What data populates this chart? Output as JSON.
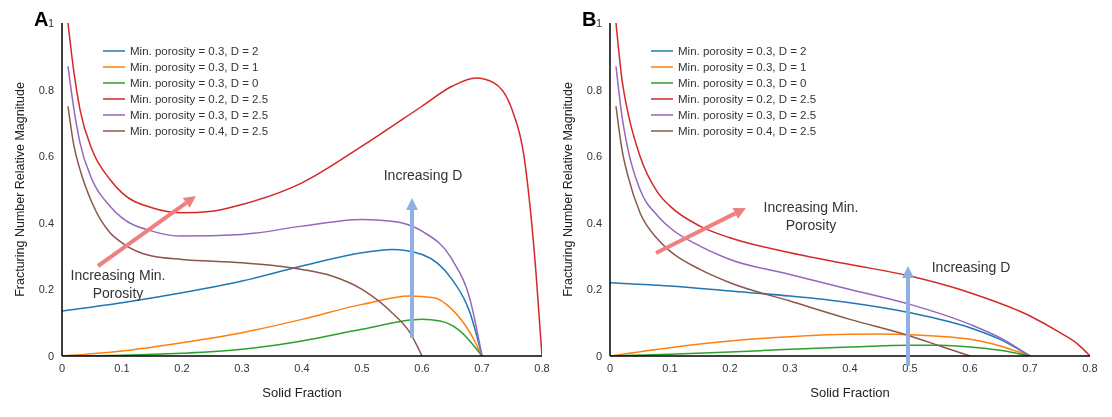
{
  "chart_data": [
    {
      "type": "line",
      "title": "A",
      "xlabel": "Solid Fraction",
      "ylabel": "Fracturing Number Relative Magnitude",
      "xlim": [
        0,
        0.8
      ],
      "xticks": [
        0,
        0.1,
        0.2,
        0.3,
        0.4,
        0.5,
        0.6,
        0.7,
        0.8
      ],
      "ylim": [
        0,
        1
      ],
      "yticks": [
        0,
        0.2,
        0.4,
        0.6,
        0.8,
        1
      ],
      "legend": "top left",
      "marker": "none",
      "annotations": [
        "Increasing D",
        "Increasing Min. Porosity"
      ],
      "series": [
        {
          "name": "Min. porosity = 0.3, D = 2",
          "color": "#1f77b4",
          "x": [
            0,
            0.1,
            0.2,
            0.3,
            0.4,
            0.5,
            0.55,
            0.6,
            0.65,
            0.68,
            0.7
          ],
          "values": [
            0.135,
            0.16,
            0.19,
            0.225,
            0.27,
            0.31,
            0.32,
            0.305,
            0.23,
            0.13,
            0
          ]
        },
        {
          "name": "Min. porosity = 0.3, D = 1",
          "color": "#ff7f0e",
          "x": [
            0,
            0.1,
            0.2,
            0.3,
            0.4,
            0.5,
            0.58,
            0.62,
            0.65,
            0.68,
            0.7
          ],
          "values": [
            0,
            0.015,
            0.04,
            0.07,
            0.11,
            0.155,
            0.18,
            0.175,
            0.14,
            0.07,
            0
          ]
        },
        {
          "name": "Min. porosity = 0.3, D = 0",
          "color": "#2ca02c",
          "x": [
            0,
            0.1,
            0.2,
            0.3,
            0.4,
            0.5,
            0.6,
            0.63,
            0.66,
            0.7
          ],
          "values": [
            0,
            0.002,
            0.008,
            0.02,
            0.045,
            0.08,
            0.11,
            0.105,
            0.08,
            0
          ]
        },
        {
          "name": "Min. porosity = 0.2, D = 2.5",
          "color": "#d62728",
          "x": [
            0.01,
            0.02,
            0.03,
            0.05,
            0.08,
            0.1,
            0.15,
            0.2,
            0.25,
            0.3,
            0.4,
            0.5,
            0.6,
            0.65,
            0.69,
            0.72,
            0.75,
            0.77,
            0.78,
            0.79,
            0.8
          ],
          "values": [
            1,
            0.85,
            0.74,
            0.62,
            0.53,
            0.49,
            0.445,
            0.43,
            0.435,
            0.455,
            0.52,
            0.63,
            0.75,
            0.81,
            0.835,
            0.82,
            0.74,
            0.6,
            0.45,
            0.25,
            0
          ]
        },
        {
          "name": "Min. porosity = 0.3, D = 2.5",
          "color": "#9467bd",
          "x": [
            0.01,
            0.02,
            0.03,
            0.05,
            0.08,
            0.1,
            0.15,
            0.2,
            0.3,
            0.4,
            0.5,
            0.55,
            0.6,
            0.65,
            0.68,
            0.7
          ],
          "values": [
            0.87,
            0.74,
            0.64,
            0.53,
            0.45,
            0.415,
            0.375,
            0.36,
            0.365,
            0.39,
            0.41,
            0.405,
            0.375,
            0.29,
            0.17,
            0
          ]
        },
        {
          "name": "Min. porosity = 0.4, D = 2.5",
          "color": "#8c564b",
          "x": [
            0.01,
            0.02,
            0.03,
            0.05,
            0.08,
            0.1,
            0.15,
            0.2,
            0.3,
            0.4,
            0.45,
            0.5,
            0.55,
            0.58,
            0.6
          ],
          "values": [
            0.75,
            0.63,
            0.56,
            0.46,
            0.37,
            0.34,
            0.3,
            0.29,
            0.28,
            0.26,
            0.24,
            0.2,
            0.13,
            0.07,
            0
          ]
        }
      ]
    },
    {
      "type": "line",
      "title": "B",
      "xlabel": "Solid Fraction",
      "ylabel": "Fracturing Number Relative Magnitude",
      "xlim": [
        0,
        0.8
      ],
      "xticks": [
        0,
        0.1,
        0.2,
        0.3,
        0.4,
        0.5,
        0.6,
        0.7,
        0.8
      ],
      "ylim": [
        0,
        1
      ],
      "yticks": [
        0,
        0.2,
        0.4,
        0.6,
        0.8,
        1
      ],
      "legend": "top left",
      "marker": "none",
      "annotations": [
        "Increasing Min. Porosity",
        "Increasing D"
      ],
      "series": [
        {
          "name": "Min. porosity = 0.3, D = 2",
          "color": "#1f77b4",
          "x": [
            0,
            0.1,
            0.2,
            0.3,
            0.4,
            0.5,
            0.6,
            0.65,
            0.7
          ],
          "values": [
            0.22,
            0.21,
            0.195,
            0.18,
            0.16,
            0.13,
            0.085,
            0.05,
            0
          ]
        },
        {
          "name": "Min. porosity = 0.3, D = 1",
          "color": "#ff7f0e",
          "x": [
            0,
            0.1,
            0.2,
            0.3,
            0.4,
            0.45,
            0.5,
            0.6,
            0.65,
            0.7
          ],
          "values": [
            0,
            0.025,
            0.045,
            0.058,
            0.065,
            0.066,
            0.064,
            0.05,
            0.03,
            0
          ]
        },
        {
          "name": "Min. porosity = 0.3, D = 0",
          "color": "#2ca02c",
          "x": [
            0,
            0.1,
            0.2,
            0.3,
            0.4,
            0.5,
            0.55,
            0.6,
            0.65,
            0.7
          ],
          "values": [
            0,
            0.005,
            0.012,
            0.02,
            0.027,
            0.032,
            0.032,
            0.027,
            0.017,
            0
          ]
        },
        {
          "name": "Min. porosity = 0.2, D = 2.5",
          "color": "#d62728",
          "x": [
            0.01,
            0.02,
            0.03,
            0.05,
            0.08,
            0.1,
            0.15,
            0.2,
            0.3,
            0.4,
            0.5,
            0.6,
            0.7,
            0.75,
            0.78,
            0.8
          ],
          "values": [
            1,
            0.83,
            0.73,
            0.6,
            0.49,
            0.45,
            0.39,
            0.355,
            0.31,
            0.275,
            0.24,
            0.19,
            0.12,
            0.07,
            0.035,
            0
          ]
        },
        {
          "name": "Min. porosity = 0.3, D = 2.5",
          "color": "#9467bd",
          "x": [
            0.01,
            0.02,
            0.03,
            0.05,
            0.08,
            0.1,
            0.15,
            0.2,
            0.3,
            0.4,
            0.5,
            0.6,
            0.65,
            0.7
          ],
          "values": [
            0.87,
            0.72,
            0.62,
            0.5,
            0.42,
            0.385,
            0.33,
            0.29,
            0.245,
            0.2,
            0.155,
            0.095,
            0.055,
            0
          ]
        },
        {
          "name": "Min. porosity = 0.4, D = 2.5",
          "color": "#8c564b",
          "x": [
            0.01,
            0.02,
            0.03,
            0.05,
            0.08,
            0.1,
            0.15,
            0.2,
            0.3,
            0.4,
            0.5,
            0.55,
            0.6
          ],
          "values": [
            0.75,
            0.62,
            0.54,
            0.43,
            0.35,
            0.315,
            0.26,
            0.22,
            0.165,
            0.11,
            0.06,
            0.03,
            0
          ]
        }
      ]
    }
  ]
}
